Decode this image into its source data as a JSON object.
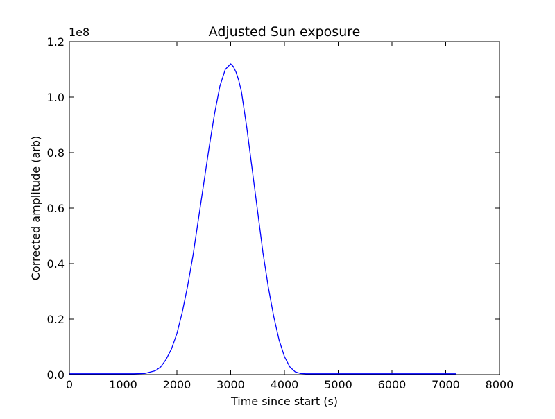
{
  "chart_data": {
    "type": "line",
    "title": "Adjusted Sun exposure",
    "xlabel": "Time since start (s)",
    "ylabel": "Corrected amplitude (arb)",
    "xlim": [
      0,
      8000
    ],
    "ylim": [
      0,
      1.2
    ],
    "y_offset_label": "1e8",
    "y_scale": 100000000,
    "x_ticks": [
      0,
      1000,
      2000,
      3000,
      4000,
      5000,
      6000,
      7000,
      8000
    ],
    "x_tick_labels": [
      "0",
      "1000",
      "2000",
      "3000",
      "4000",
      "5000",
      "6000",
      "7000",
      "8000"
    ],
    "y_ticks": [
      0,
      0.2,
      0.4,
      0.6,
      0.8,
      1.0,
      1.2
    ],
    "y_tick_labels": [
      "0.0",
      "0.2",
      "0.4",
      "0.6",
      "0.8",
      "1.0",
      "1.2"
    ],
    "grid": false,
    "legend": false,
    "colors": {
      "line": "#0000ff",
      "axes": "#000000",
      "background": "#ffffff"
    },
    "series": [
      {
        "x": [
          0,
          200,
          400,
          600,
          800,
          1000,
          1200,
          1400,
          1600,
          1700,
          1800,
          1900,
          2000,
          2100,
          2200,
          2300,
          2400,
          2500,
          2600,
          2700,
          2800,
          2850,
          2900,
          2950,
          3000,
          3050,
          3100,
          3150,
          3200,
          3300,
          3400,
          3500,
          3600,
          3700,
          3800,
          3900,
          4000,
          4100,
          4200,
          4300,
          4400,
          4500,
          4700,
          5000,
          5500,
          6000,
          6500,
          7000,
          7200
        ],
        "y": [
          0.003,
          0.003,
          0.003,
          0.003,
          0.003,
          0.003,
          0.003,
          0.004,
          0.014,
          0.028,
          0.055,
          0.093,
          0.148,
          0.225,
          0.32,
          0.43,
          0.56,
          0.69,
          0.82,
          0.94,
          1.04,
          1.07,
          1.1,
          1.11,
          1.12,
          1.11,
          1.09,
          1.06,
          1.02,
          0.89,
          0.74,
          0.59,
          0.44,
          0.315,
          0.21,
          0.125,
          0.065,
          0.028,
          0.01,
          0.004,
          0.003,
          0.003,
          0.003,
          0.003,
          0.003,
          0.003,
          0.003,
          0.003,
          0.003
        ]
      }
    ]
  }
}
